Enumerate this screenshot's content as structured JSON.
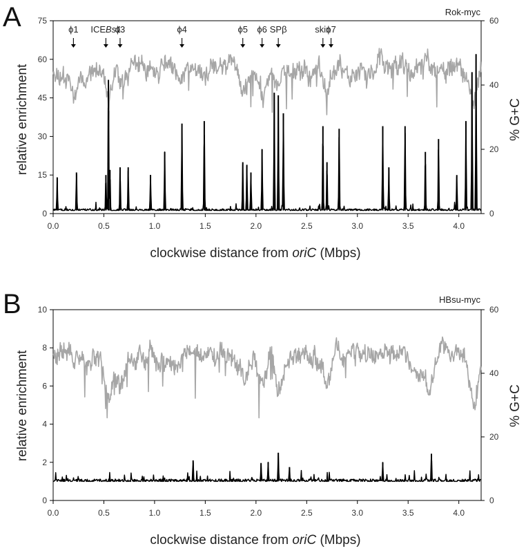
{
  "chart_data": [
    {
      "panel": "A",
      "type": "line",
      "strain": "Rok-myc",
      "xlabel_pre": "clockwise distance from ",
      "xlabel_em": "oriC",
      "xlabel_post": " (Mbps)",
      "ylabel_left": "relative enrichment",
      "ylabel_right": "% G+C",
      "xlim": [
        0,
        4.22
      ],
      "ylim_left": [
        0,
        75
      ],
      "ylim_right": [
        0,
        60
      ],
      "xticks": [
        "0.0",
        "0.5",
        "1.0",
        "1.5",
        "2.0",
        "2.5",
        "3.0",
        "3.5",
        "4.0"
      ],
      "yticks_left": [
        "0",
        "15",
        "30",
        "45",
        "60",
        "75"
      ],
      "yticks_right": [
        "0",
        "20",
        "40",
        "60"
      ],
      "series": [
        {
          "axis": "right",
          "color": "#a6a6a6",
          "baseline": 45,
          "noise": 4.5,
          "dips": [
            [
              0.2,
              6
            ],
            [
              0.55,
              9
            ],
            [
              0.66,
              6
            ],
            [
              1.25,
              4
            ],
            [
              1.9,
              6
            ],
            [
              2.07,
              9
            ],
            [
              2.22,
              7
            ],
            [
              2.7,
              8
            ],
            [
              4.15,
              10
            ]
          ]
        },
        {
          "axis": "left",
          "color": "#000000",
          "baseline": 1.2,
          "noise": 1.2,
          "peaks": [
            [
              0.04,
              14
            ],
            [
              0.23,
              16
            ],
            [
              0.52,
              15
            ],
            [
              0.545,
              52
            ],
            [
              0.56,
              17
            ],
            [
              0.66,
              18
            ],
            [
              0.74,
              18
            ],
            [
              0.96,
              15
            ],
            [
              1.1,
              24
            ],
            [
              1.27,
              35
            ],
            [
              1.49,
              36
            ],
            [
              1.87,
              20
            ],
            [
              1.91,
              19
            ],
            [
              1.95,
              16
            ],
            [
              2.06,
              25
            ],
            [
              2.18,
              47
            ],
            [
              2.22,
              46
            ],
            [
              2.27,
              39
            ],
            [
              2.66,
              34
            ],
            [
              2.7,
              20
            ],
            [
              2.82,
              33
            ],
            [
              3.25,
              34
            ],
            [
              3.31,
              18
            ],
            [
              3.47,
              34
            ],
            [
              3.67,
              24
            ],
            [
              3.8,
              29
            ],
            [
              3.98,
              15
            ],
            [
              4.07,
              36
            ],
            [
              4.13,
              55
            ],
            [
              4.17,
              62
            ]
          ]
        }
      ],
      "annotations": [
        {
          "label": "ϕ1",
          "at": 0.2
        },
        {
          "label": "ICE",
          "label_em": "Bs1",
          "at": 0.52
        },
        {
          "label": "ϕ3",
          "at": 0.66
        },
        {
          "label": "ϕ4",
          "at": 1.27
        },
        {
          "label": "ϕ5",
          "at": 1.87
        },
        {
          "label": "ϕ6",
          "at": 2.06
        },
        {
          "label": "SPβ",
          "at": 2.22
        },
        {
          "label": "skin",
          "at": 2.66
        },
        {
          "label": "ϕ7",
          "at": 2.74
        }
      ]
    },
    {
      "panel": "B",
      "type": "line",
      "strain": "HBsu-myc",
      "xlabel_pre": "clockwise distance from ",
      "xlabel_em": "oriC",
      "xlabel_post": " (Mbps)",
      "ylabel_left": "relative enrichment",
      "ylabel_right": "% G+C",
      "xlim": [
        0,
        4.22
      ],
      "ylim_left": [
        0,
        10
      ],
      "ylim_right": [
        0,
        60
      ],
      "xticks": [
        "0.0",
        "0.5",
        "1.0",
        "1.5",
        "2.0",
        "2.5",
        "3.0",
        "3.5",
        "4.0"
      ],
      "yticks_left": [
        "0",
        "2",
        "4",
        "6",
        "8",
        "10"
      ],
      "yticks_right": [
        "0",
        "20",
        "40",
        "60"
      ],
      "series": [
        {
          "axis": "right",
          "color": "#a6a6a6",
          "baseline": 45,
          "noise": 4.5,
          "dips": [
            [
              0.55,
              12
            ],
            [
              0.66,
              8
            ],
            [
              1.9,
              8
            ],
            [
              2.07,
              10
            ],
            [
              2.22,
              10
            ],
            [
              2.7,
              8
            ],
            [
              3.6,
              6
            ],
            [
              3.7,
              10
            ],
            [
              4.15,
              12
            ]
          ]
        },
        {
          "axis": "left",
          "color": "#000000",
          "baseline": 1.0,
          "noise": 0.22,
          "peaks": [
            [
              1.38,
              2.1
            ],
            [
              2.05,
              1.95
            ],
            [
              2.12,
              2.0
            ],
            [
              2.22,
              2.5
            ],
            [
              2.33,
              1.75
            ],
            [
              3.25,
              2.0
            ],
            [
              3.73,
              2.45
            ]
          ]
        }
      ]
    }
  ]
}
